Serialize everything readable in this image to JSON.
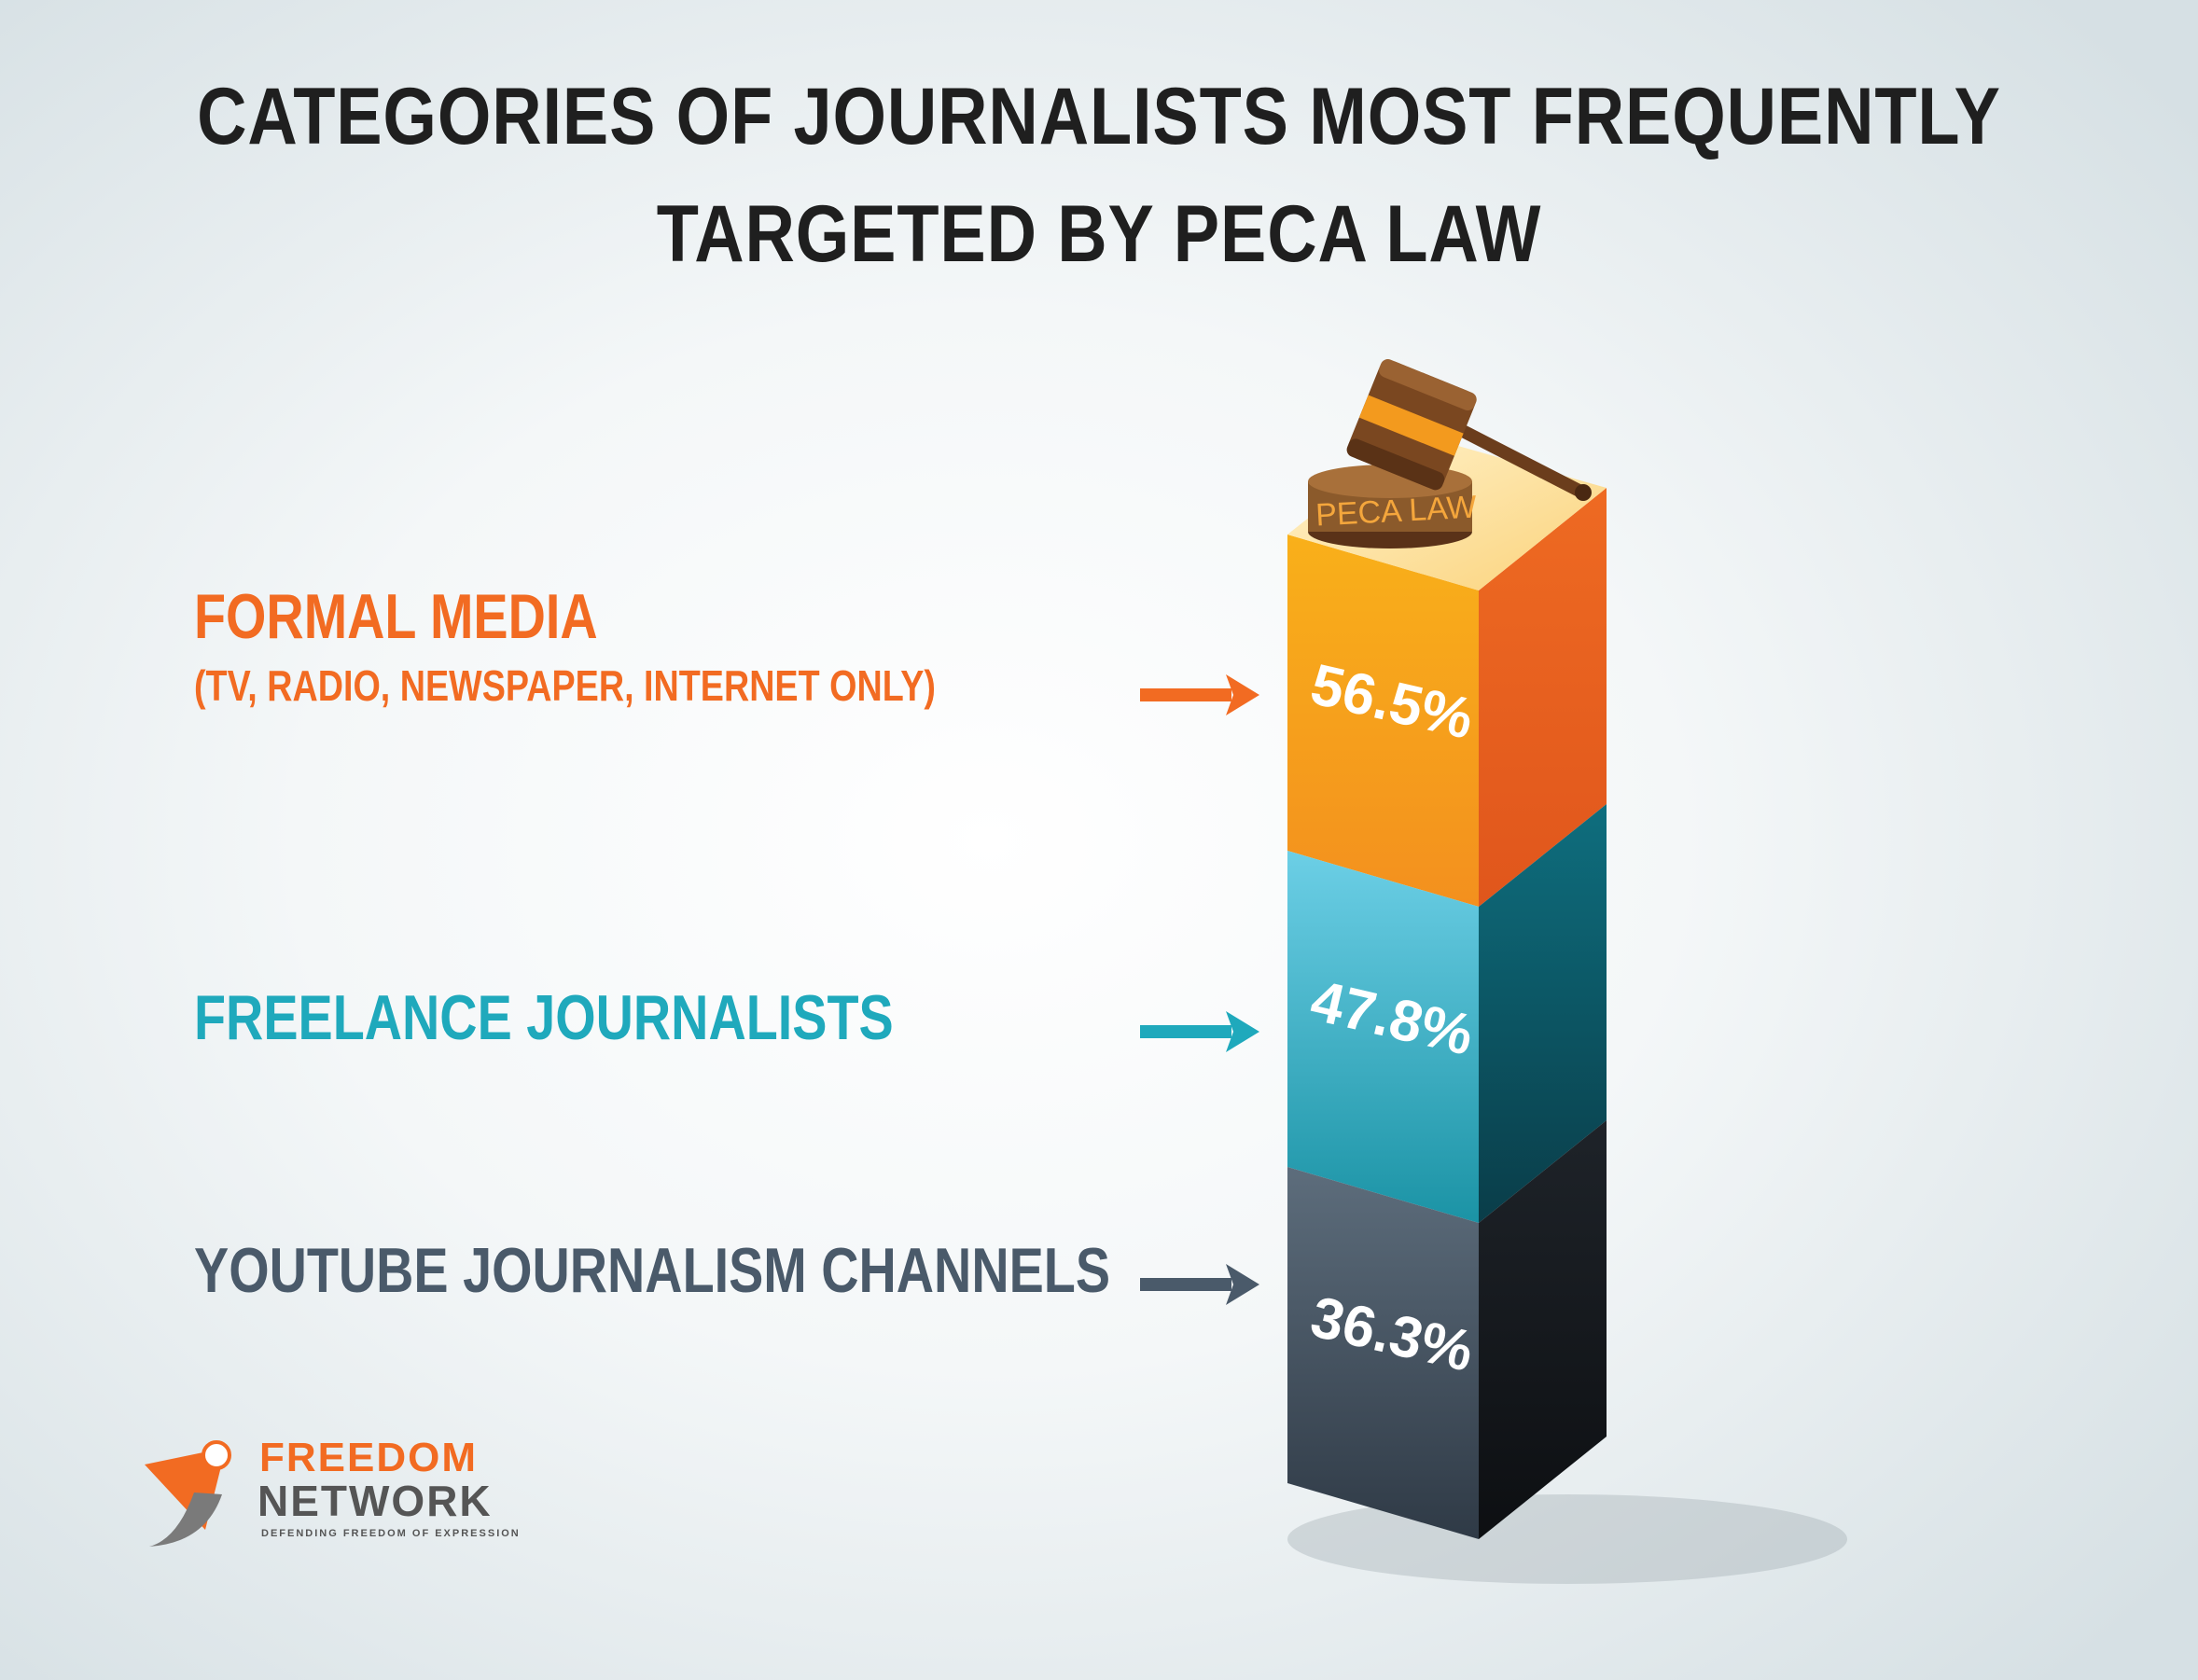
{
  "title": {
    "line1": "CATEGORIES OF JOURNALISTS MOST FREQUENTLY",
    "line2": "TARGETED BY PECA LAW"
  },
  "chart_data": {
    "type": "bar",
    "title": "CATEGORIES OF JOURNALISTS MOST FREQUENTLY TARGETED BY PECA LAW",
    "categories": [
      "FORMAL MEDIA",
      "FREELANCE JOURNALISTS",
      "YOUTUBE JOURNALISM CHANNELS"
    ],
    "category_notes": [
      "(TV, RADIO, NEWSPAPER, INTERNET ONLY)",
      "",
      ""
    ],
    "values": [
      56.5,
      47.8,
      36.3
    ],
    "value_labels": [
      "56.5%",
      "47.8%",
      "36.3%"
    ],
    "unit": "%",
    "colors": [
      "#f26b22",
      "#1fa9bc",
      "#4a5a6a"
    ],
    "face_colors": [
      {
        "front_top": "#f9b01a",
        "front_bottom": "#f3901e",
        "side_top": "#ee6a22",
        "side_bottom": "#e0561c"
      },
      {
        "front_top": "#6ccfe6",
        "front_bottom": "#1b93a5",
        "side_top": "#0e6e7e",
        "side_bottom": "#0a3d49"
      },
      {
        "front_top": "#5d6d7c",
        "front_bottom": "#2f3a46",
        "side_top": "#1e2329",
        "side_bottom": "#0d0f12"
      }
    ],
    "top_label": "PECA LAW"
  },
  "logo": {
    "line1": "FREEDOM",
    "line2": "NETWORK",
    "tagline": "DEFENDING FREEDOM OF EXPRESSION",
    "accent": "#f26b22",
    "dark": "#5a5a5a"
  }
}
